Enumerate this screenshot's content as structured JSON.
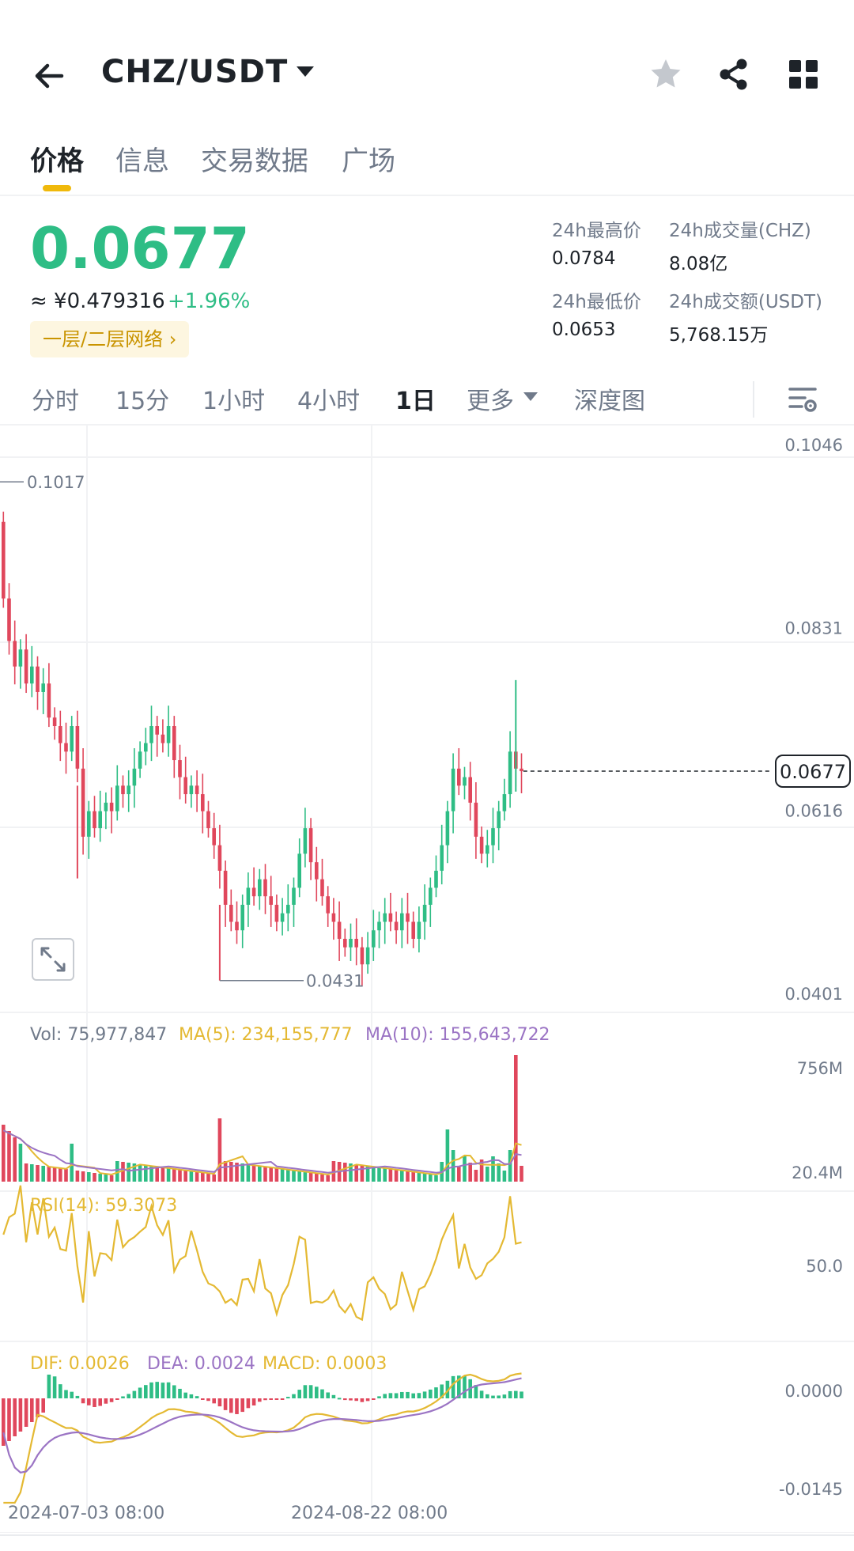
{
  "header": {
    "pair": "CHZ/USDT",
    "icons": [
      "back-arrow-icon",
      "caret-down-icon",
      "star-icon",
      "share-icon",
      "grid-icon"
    ]
  },
  "tabs": [
    {
      "label": "价格",
      "active": true
    },
    {
      "label": "信息",
      "active": false
    },
    {
      "label": "交易数据",
      "active": false
    },
    {
      "label": "广场",
      "active": false
    }
  ],
  "price": {
    "last": "0.0677",
    "cny": "≈ ¥0.479316",
    "change": "+1.96%",
    "tag": "一层/二层网络 ›"
  },
  "stats": {
    "high_label": "24h最高价",
    "high_value": "0.0784",
    "vol_label": "24h成交量(CHZ)",
    "vol_value": "8.08亿",
    "low_label": "24h最低价",
    "low_value": "0.0653",
    "amount_label": "24h成交额(USDT)",
    "amount_value": "5,768.15万"
  },
  "intervals": [
    {
      "label": "分时",
      "active": false
    },
    {
      "label": "15分",
      "active": false
    },
    {
      "label": "1小时",
      "active": false
    },
    {
      "label": "4小时",
      "active": false
    },
    {
      "label": "1日",
      "active": true
    },
    {
      "label": "更多",
      "active": false
    },
    {
      "label": "深度图",
      "active": false
    }
  ],
  "colors": {
    "up": "#2ebd85",
    "down": "#e0475c",
    "ma5": "#e4b933",
    "ma10": "#9b74c4",
    "accent": "#f0b90b"
  },
  "chart_data": [
    {
      "type": "candlestick",
      "title": "",
      "y_axis_labels": [
        "0.1046",
        "0.0831",
        "0.0616",
        "0.0401"
      ],
      "ylim": [
        0.0401,
        0.1046
      ],
      "current_price": "0.0677",
      "annotations": {
        "high_label": "0.1017",
        "low_label": "0.0431"
      },
      "x_labels": [
        "2024-07-03 08:00",
        "2024-08-22 08:00"
      ],
      "closes_approx": [
        0.088,
        0.083,
        0.08,
        0.082,
        0.078,
        0.08,
        0.077,
        0.078,
        0.074,
        0.073,
        0.071,
        0.07,
        0.073,
        0.068,
        0.06,
        0.063,
        0.061,
        0.063,
        0.064,
        0.063,
        0.066,
        0.065,
        0.066,
        0.068,
        0.07,
        0.071,
        0.073,
        0.072,
        0.071,
        0.073,
        0.069,
        0.067,
        0.065,
        0.066,
        0.065,
        0.063,
        0.061,
        0.059,
        0.056,
        0.052,
        0.05,
        0.049,
        0.052,
        0.054,
        0.053,
        0.055,
        0.053,
        0.052,
        0.05,
        0.051,
        0.052,
        0.054,
        0.058,
        0.061,
        0.057,
        0.055,
        0.053,
        0.051,
        0.05,
        0.048,
        0.047,
        0.048,
        0.047,
        0.045,
        0.047,
        0.049,
        0.05,
        0.051,
        0.05,
        0.049,
        0.051,
        0.05,
        0.048,
        0.05,
        0.052,
        0.054,
        0.056,
        0.059,
        0.063,
        0.068,
        0.066,
        0.067,
        0.064,
        0.06,
        0.058,
        0.059,
        0.061,
        0.063,
        0.065,
        0.07,
        0.068,
        0.0677
      ]
    },
    {
      "type": "bar",
      "title": "Vol",
      "legend": [
        {
          "label": "Vol: 75,977,847"
        },
        {
          "label": "MA(5): 234,155,777"
        },
        {
          "label": "MA(10): 155,643,722"
        }
      ],
      "y_axis_labels": [
        "756M",
        "20.4M"
      ]
    },
    {
      "type": "line",
      "title": "RSI(14): 59.3073",
      "y_axis_labels": [
        "50.0"
      ]
    },
    {
      "type": "bar",
      "title": "MACD",
      "legend": [
        {
          "label": "DIF: 0.0026"
        },
        {
          "label": "DEA: 0.0024"
        },
        {
          "label": "MACD: 0.0003"
        }
      ],
      "y_axis_labels": [
        "0.0000",
        "-0.0145"
      ]
    }
  ]
}
